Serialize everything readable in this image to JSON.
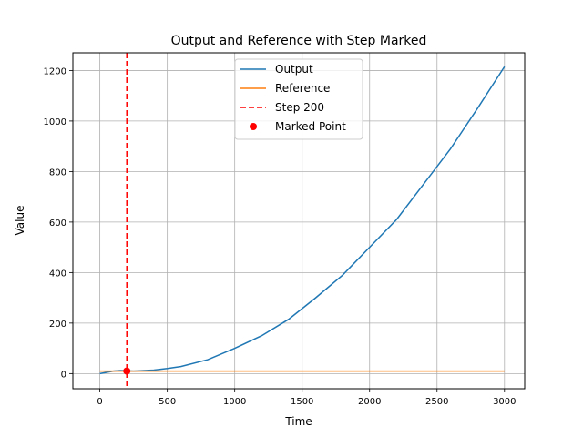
{
  "chart_data": {
    "type": "line",
    "title": "Output and Reference with Step Marked",
    "xlabel": "Time",
    "ylabel": "Value",
    "xlim": [
      -200,
      3150
    ],
    "ylim": [
      -60,
      1270
    ],
    "xticks": [
      0,
      500,
      1000,
      1500,
      2000,
      2500,
      3000
    ],
    "yticks": [
      0,
      200,
      400,
      600,
      800,
      1000,
      1200
    ],
    "grid": true,
    "legend_position": "top-center",
    "series": [
      {
        "name": "Output",
        "color": "#1f77b4",
        "style": "solid",
        "x": [
          0,
          50,
          100,
          150,
          200,
          250,
          300,
          400,
          500,
          600,
          800,
          1000,
          1200,
          1400,
          1600,
          1800,
          2000,
          2200,
          2400,
          2600,
          2800,
          3000
        ],
        "y": [
          0,
          5,
          10,
          12,
          11,
          10,
          11,
          14,
          20,
          28,
          55,
          100,
          150,
          215,
          300,
          390,
          500,
          610,
          750,
          890,
          1050,
          1215
        ]
      },
      {
        "name": "Reference",
        "color": "#ff7f0e",
        "style": "solid",
        "x": [
          0,
          3000
        ],
        "y": [
          10,
          10
        ]
      }
    ],
    "vlines": [
      {
        "name": "Step 200",
        "x": 200,
        "color": "#ff0000",
        "style": "dashed"
      }
    ],
    "points": [
      {
        "name": "Marked Point",
        "x": 200,
        "y": 10,
        "color": "#ff0000"
      }
    ]
  }
}
